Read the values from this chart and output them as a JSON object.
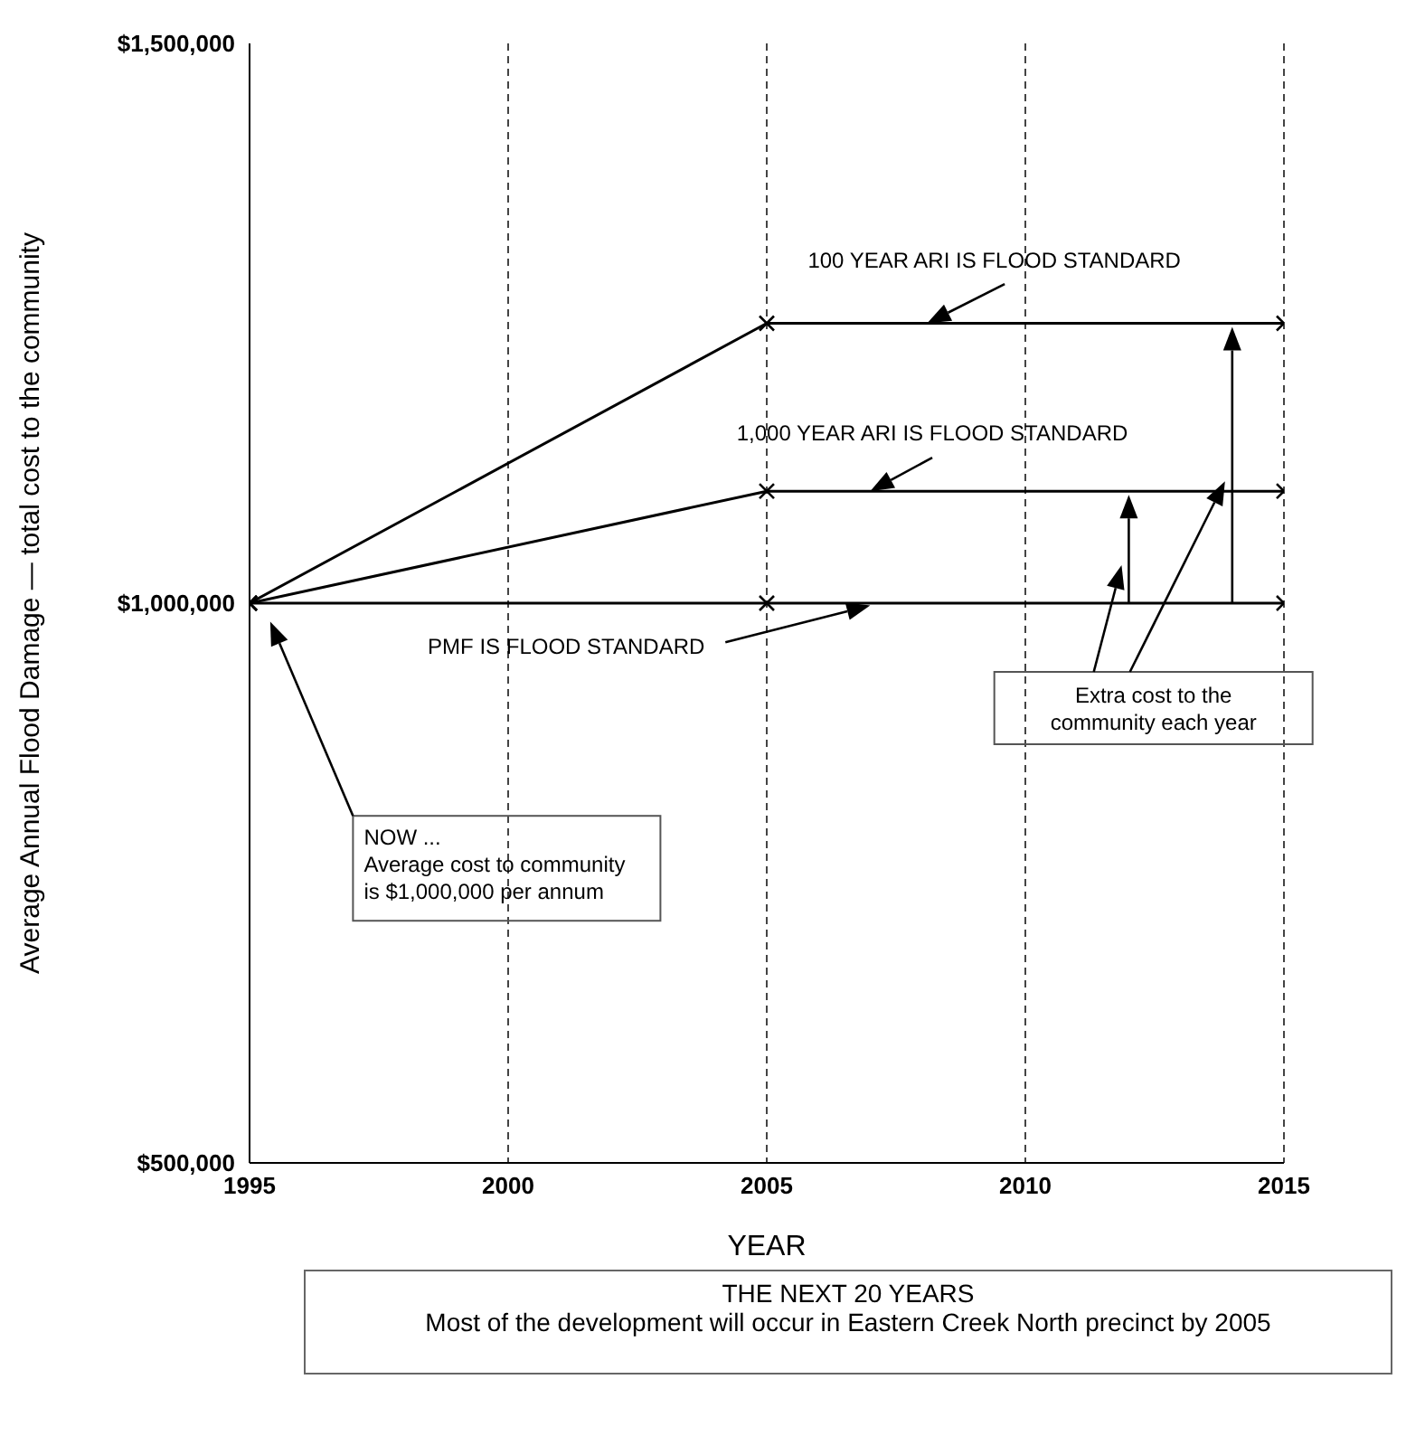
{
  "chart_data": {
    "type": "line",
    "xlabel": "YEAR",
    "ylabel": "Average Annual Flood Damage — total cost to the community",
    "x": [
      1995,
      2005,
      2015
    ],
    "series": [
      {
        "color": "#000000",
        "values": [
          1000000,
          1250000,
          1250000
        ]
      },
      {
        "color": "#000000",
        "values": [
          1000000,
          1100000,
          1100000
        ]
      },
      {
        "color": "#000000",
        "values": [
          1000000,
          1000000,
          1000000
        ]
      }
    ],
    "xlim": [
      1995,
      2015
    ],
    "xticks": [
      1995,
      2000,
      2005,
      2010,
      2015
    ],
    "ylim": [
      500000,
      1500000
    ],
    "yticks": [
      {
        "value": 500000,
        "label": "$500,000"
      },
      {
        "value": 1000000,
        "label": "$1,000,000"
      },
      {
        "value": 1500000,
        "label": "$1,500,000"
      }
    ],
    "grid": "x",
    "marker": "cross",
    "line_style": "solid",
    "legend": false,
    "annotations": [
      "100 YEAR ARI IS FLOOD STANDARD",
      "1,000 YEAR ARI IS FLOOD STANDARD",
      "PMF IS FLOOD STANDARD",
      "NOW ...\nAverage cost to community\nis $1,000,000 per annum",
      "Extra cost to the\ncommunity each year",
      "THE NEXT 20 YEARS\nMost of the development will occur in Eastern Creek North precinct by 2005"
    ]
  }
}
